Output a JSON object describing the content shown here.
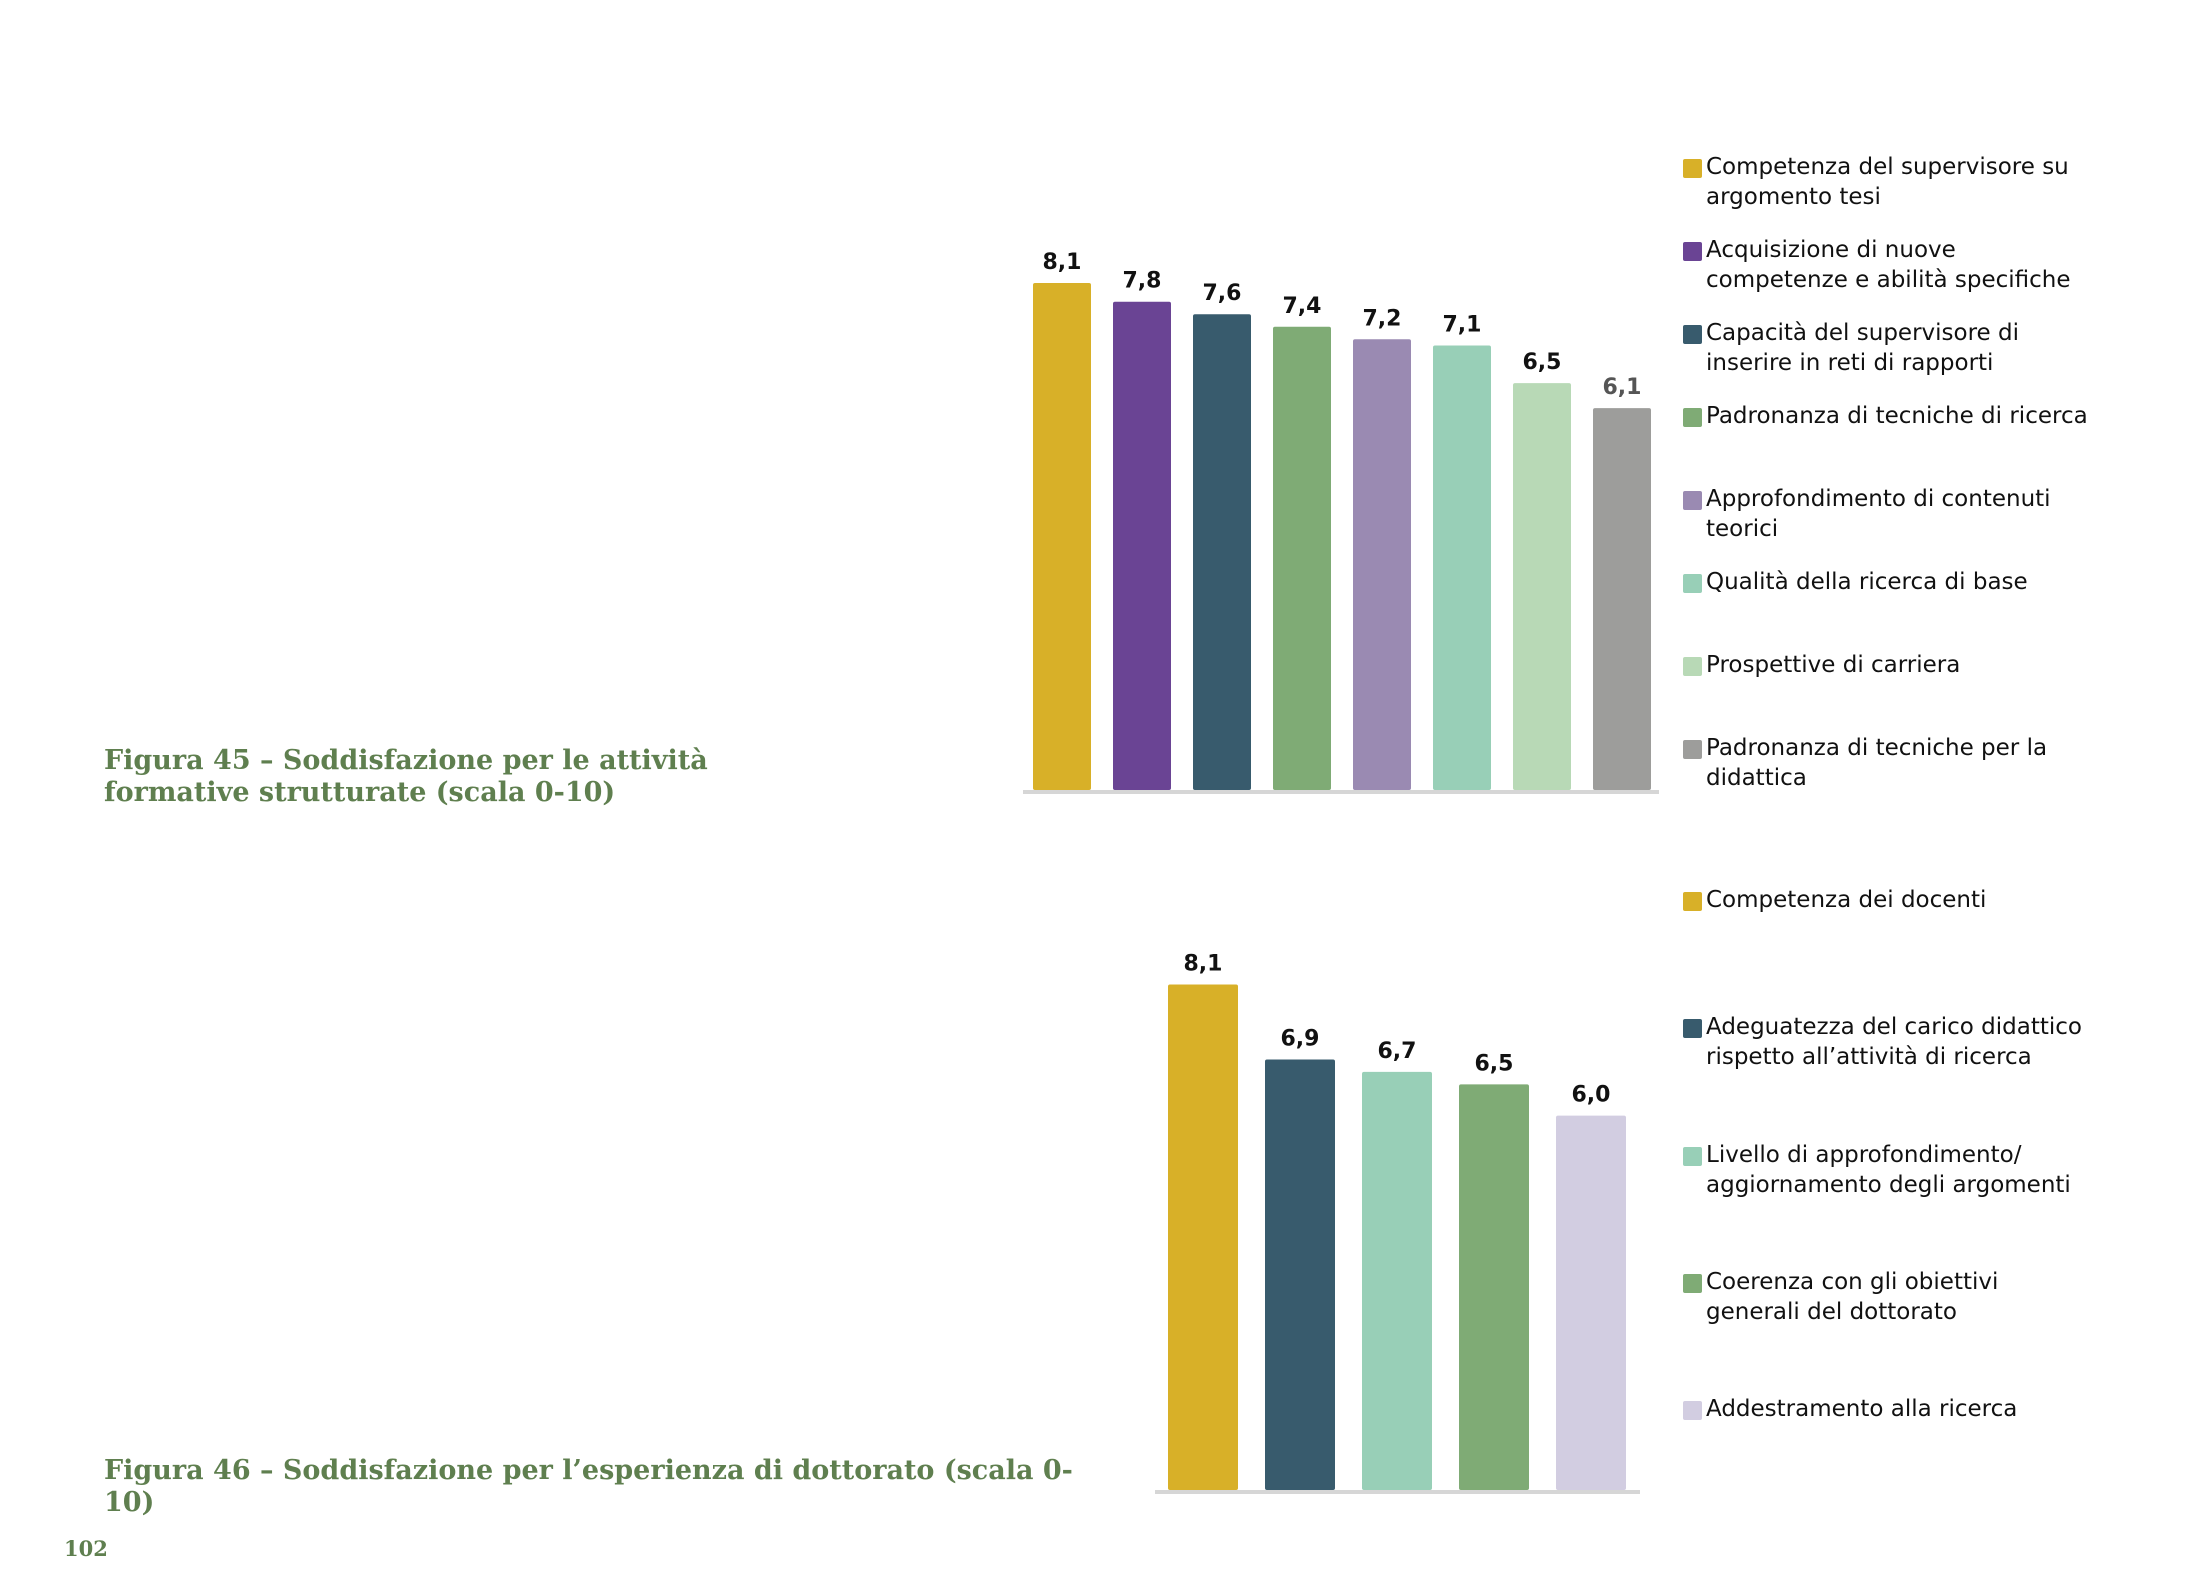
{
  "figure45": {
    "caption": "Figura 45 – Soddisfazione per le attività formative strutturate (scala 0-10)",
    "chart_data": {
      "type": "bar",
      "title": "",
      "categories": [
        "Competenza del supervisore su argomento tesi",
        "Acquisizione di nuove competenze e abilità specifiche",
        "Capacità del supervisore di inserire in reti di rapporti",
        "Padronanza di tecniche di ricerca",
        "Approfondimento di contenuti teorici",
        "Qualità della ricerca di base",
        "Prospettive di carriera",
        "Padronanza di tecniche per la didattica"
      ],
      "values": [
        8.1,
        7.8,
        7.6,
        7.4,
        7.2,
        7.1,
        6.5,
        6.1
      ],
      "value_labels": [
        "8,1",
        "7,8",
        "7,6",
        "7,4",
        "7,2",
        "7,1",
        "6,5",
        "6,1"
      ],
      "colors": [
        "#d8b028",
        "#6a4494",
        "#385b6d",
        "#7fab75",
        "#9a8ab2",
        "#98cfb7",
        "#b8d9b6",
        "#9d9d9b"
      ],
      "ylim": [
        0,
        10
      ],
      "grid": false,
      "legend_position": "right"
    }
  },
  "figure46": {
    "caption": "Figura 46 – Soddisfazione per l’esperienza di dottorato (scala 0-10)",
    "chart_data": {
      "type": "bar",
      "title": "",
      "categories": [
        "Competenza dei docenti",
        "Adeguatezza del carico didattico rispetto all’attività di ricerca",
        "Livello di approfondimento/ aggiornamento degli argomenti",
        "Coerenza con gli obiettivi generali del dottorato",
        "Addestramento alla ricerca"
      ],
      "values": [
        8.1,
        6.9,
        6.7,
        6.5,
        6.0
      ],
      "value_labels": [
        "8,1",
        "6,9",
        "6,7",
        "6,5",
        "6,0"
      ],
      "colors": [
        "#d8b028",
        "#385b6d",
        "#98cfb7",
        "#7fab75",
        "#d2cde1"
      ],
      "ylim": [
        0,
        10
      ],
      "grid": false,
      "legend_position": "right"
    }
  },
  "page_number": "102"
}
